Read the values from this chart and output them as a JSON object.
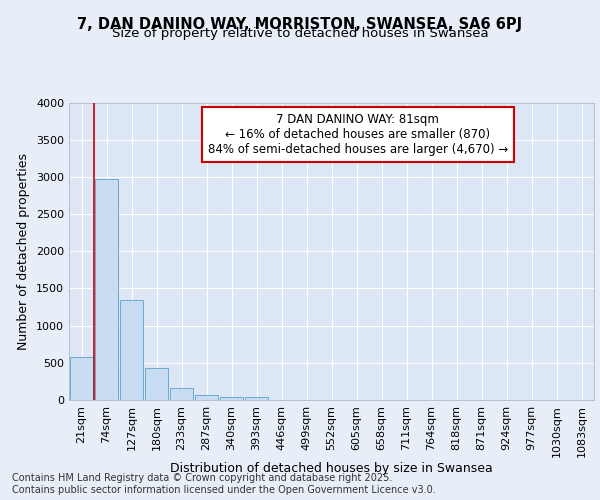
{
  "title": "7, DAN DANINO WAY, MORRISTON, SWANSEA, SA6 6PJ",
  "subtitle": "Size of property relative to detached houses in Swansea",
  "xlabel": "Distribution of detached houses by size in Swansea",
  "ylabel": "Number of detached properties",
  "categories": [
    "21sqm",
    "74sqm",
    "127sqm",
    "180sqm",
    "233sqm",
    "287sqm",
    "340sqm",
    "393sqm",
    "446sqm",
    "499sqm",
    "552sqm",
    "605sqm",
    "658sqm",
    "711sqm",
    "764sqm",
    "818sqm",
    "871sqm",
    "924sqm",
    "977sqm",
    "1030sqm",
    "1083sqm"
  ],
  "values": [
    580,
    2970,
    1340,
    430,
    155,
    70,
    45,
    35,
    0,
    0,
    0,
    0,
    0,
    0,
    0,
    0,
    0,
    0,
    0,
    0,
    0
  ],
  "bar_color": "#c9ddf2",
  "bar_edge_color": "#6aaad4",
  "marker_line_color": "#cc0000",
  "annotation_line1": "7 DAN DANINO WAY: 81sqm",
  "annotation_line2": "← 16% of detached houses are smaller (870)",
  "annotation_line3": "84% of semi-detached houses are larger (4,670) →",
  "annotation_box_color": "#ffffff",
  "annotation_box_edge_color": "#cc0000",
  "ylim": [
    0,
    4000
  ],
  "yticks": [
    0,
    500,
    1000,
    1500,
    2000,
    2500,
    3000,
    3500,
    4000
  ],
  "background_color": "#e8eef7",
  "plot_background": "#dce6f5",
  "grid_color": "#ffffff",
  "footer_text": "Contains HM Land Registry data © Crown copyright and database right 2025.\nContains public sector information licensed under the Open Government Licence v3.0.",
  "title_fontsize": 10.5,
  "subtitle_fontsize": 9.5,
  "axis_label_fontsize": 9,
  "tick_fontsize": 8,
  "annotation_fontsize": 8.5,
  "footer_fontsize": 7
}
